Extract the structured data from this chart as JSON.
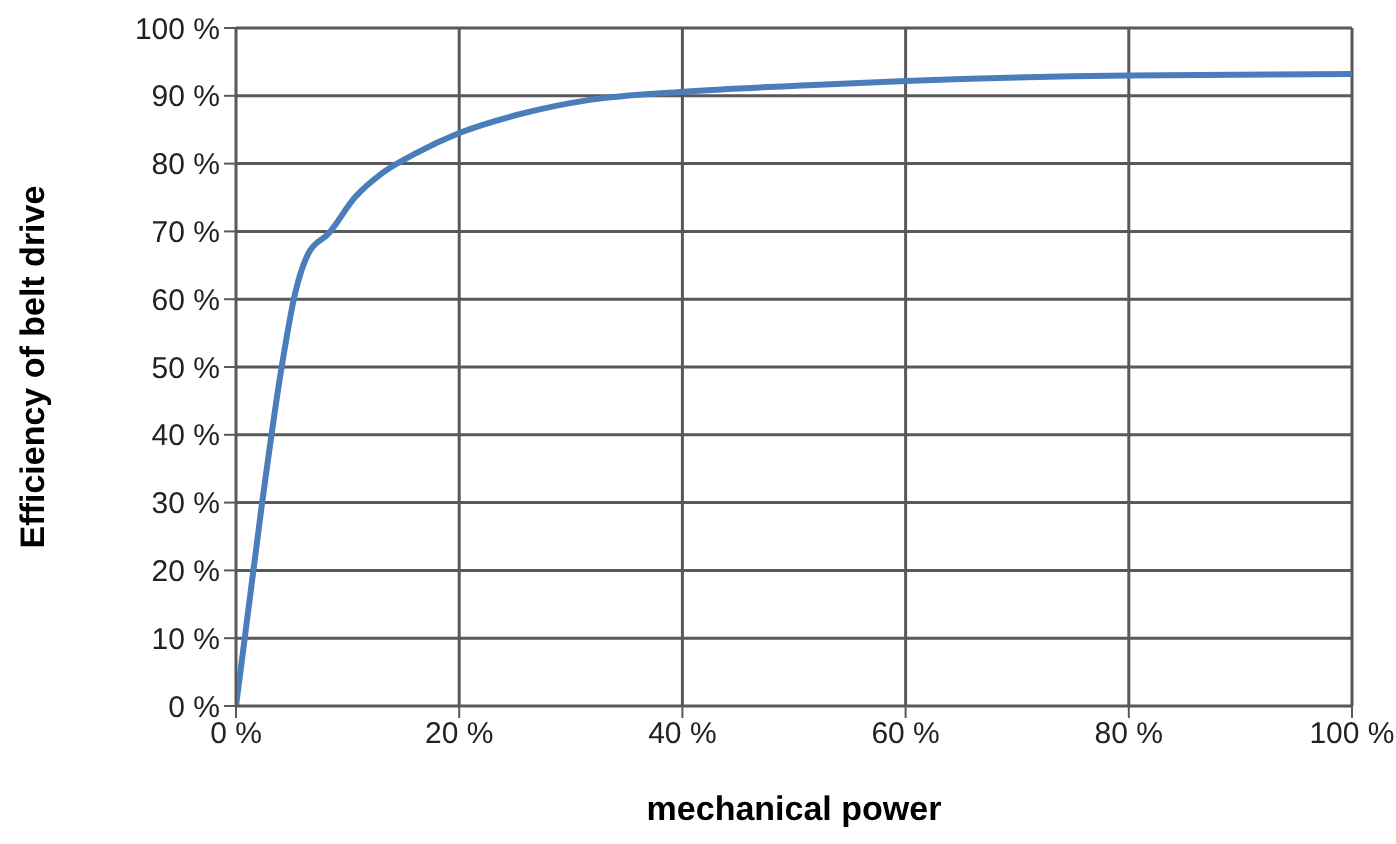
{
  "chart_data": {
    "type": "line",
    "xlabel": "mechanical power",
    "ylabel": "Efficiency of belt drive",
    "x": [
      0,
      2.3,
      4.1,
      5.3,
      6.5,
      8.3,
      10.7,
      13.1,
      16.1,
      20,
      25.7,
      31.7,
      40.1,
      50.2,
      60,
      80,
      100
    ],
    "series": [
      {
        "color": "#4a7ebb",
        "values": [
          0,
          29.5,
          50.1,
          60.9,
          66.8,
          69.7,
          75.1,
          78.6,
          81.5,
          84.5,
          87.4,
          89.4,
          90.6,
          91.5,
          92.2,
          93,
          93.2
        ]
      }
    ],
    "xlim": [
      0,
      100
    ],
    "xticks": [
      {
        "value": 0,
        "label": "0 %"
      },
      {
        "value": 20,
        "label": "20 %"
      },
      {
        "value": 40,
        "label": "40 %"
      },
      {
        "value": 60,
        "label": "60 %"
      },
      {
        "value": 80,
        "label": "80 %"
      },
      {
        "value": 100,
        "label": "100 %"
      }
    ],
    "ylim": [
      0,
      100
    ],
    "yticks": [
      {
        "value": 0,
        "label": "0 %"
      },
      {
        "value": 10,
        "label": "10 %"
      },
      {
        "value": 20,
        "label": "20 %"
      },
      {
        "value": 30,
        "label": "30 %"
      },
      {
        "value": 40,
        "label": "40 %"
      },
      {
        "value": 50,
        "label": "50 %"
      },
      {
        "value": 60,
        "label": "60 %"
      },
      {
        "value": 70,
        "label": "70 %"
      },
      {
        "value": 80,
        "label": "80 %"
      },
      {
        "value": 90,
        "label": "90 %"
      },
      {
        "value": 100,
        "label": "100 %"
      }
    ],
    "grid": true,
    "legend": false,
    "marker": "none",
    "line_style": "solid"
  }
}
